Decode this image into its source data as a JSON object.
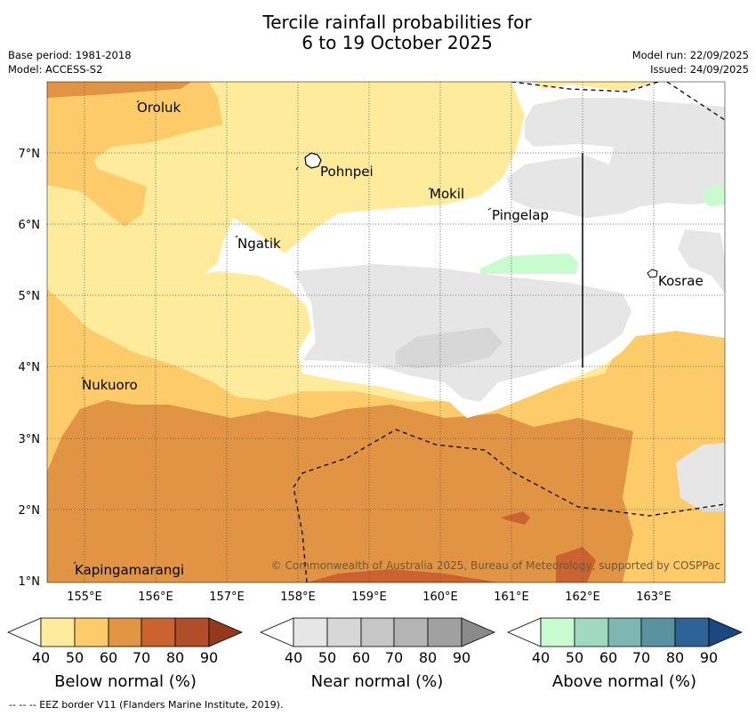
{
  "header": {
    "title_line1": "Tercile rainfall probabilities for",
    "title_line2": "6 to 19 October 2025",
    "base_period": "Base period: 1981-2018",
    "model": "Model: ACCESS-S2",
    "model_run": "Model run: 22/09/2025",
    "issued": "Issued: 24/09/2025"
  },
  "map": {
    "lat_labels": [
      "7°N",
      "6°N",
      "5°N",
      "4°N",
      "3°N",
      "2°N",
      "1°N"
    ],
    "lon_labels": [
      "155°E",
      "156°E",
      "157°E",
      "158°E",
      "159°E",
      "160°E",
      "161°E",
      "162°E",
      "163°E"
    ],
    "places": {
      "oroluk": "Oroluk",
      "pohnpei": "Pohnpei",
      "mokil": "Mokil",
      "pingelap": "Pingelap",
      "ngatik": "Ngatik",
      "kosrae": "Kosrae",
      "nukuoro": "Nukuoro",
      "kapingamarangi": "Kapingamarangi"
    },
    "copyright": "© Commonwealth of Australia 2025, Bureau of Meteorology, supported by COSPPac"
  },
  "legend": {
    "below": {
      "label": "Below normal (%)",
      "ticks": [
        "40",
        "50",
        "60",
        "70",
        "80",
        "90"
      ],
      "colors": [
        "#ffeb9b",
        "#fdcb6a",
        "#e09444",
        "#cb6330",
        "#b04e2a",
        "#92391e"
      ]
    },
    "near": {
      "label": "Near normal (%)",
      "ticks": [
        "40",
        "50",
        "60",
        "70",
        "80",
        "90"
      ],
      "colors": [
        "#e6e6e6",
        "#d7d7d7",
        "#c6c6c6",
        "#b4b4b4",
        "#a0a0a0",
        "#8a8a8a"
      ]
    },
    "above": {
      "label": "Above normal (%)",
      "ticks": [
        "40",
        "50",
        "60",
        "70",
        "80",
        "90"
      ],
      "colors": [
        "#c8fbcf",
        "#a0d8c0",
        "#7fb6b1",
        "#5a92a1",
        "#2f6296",
        "#1c4780"
      ]
    }
  },
  "footer": {
    "eez_note": "--  --  -- EEZ border V11 (Flanders Marine Institute, 2019)."
  }
}
